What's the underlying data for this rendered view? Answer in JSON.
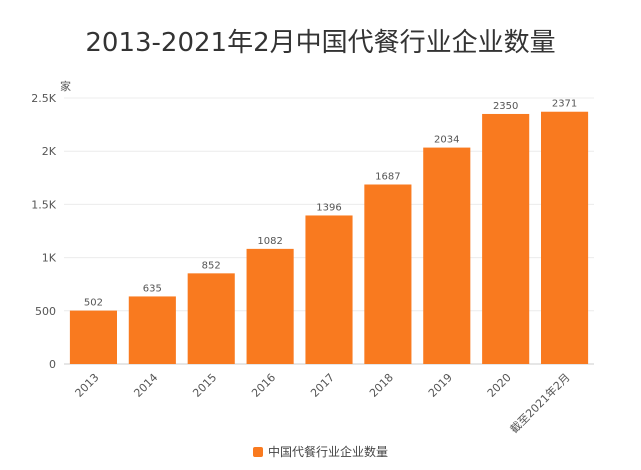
{
  "chart_data": {
    "type": "bar",
    "title": "2013-2021年2月中国代餐行业企业数量",
    "unit_label": "家",
    "categories": [
      "2013",
      "2014",
      "2015",
      "2016",
      "2017",
      "2018",
      "2019",
      "2020",
      "截至2021年2月"
    ],
    "series": [
      {
        "name": "中国代餐行业企业数量",
        "values": [
          502,
          635,
          852,
          1082,
          1396,
          1687,
          2034,
          2350,
          2371
        ],
        "color": "#F97A1F"
      }
    ],
    "ylim": [
      0,
      2500
    ],
    "yticks": [
      0,
      500,
      1000,
      1500,
      2000,
      2500
    ],
    "ytick_labels": [
      "0",
      "500",
      "1K",
      "1.5K",
      "2K",
      "2.5K"
    ],
    "grid": true,
    "legend_position": "bottom-center"
  }
}
